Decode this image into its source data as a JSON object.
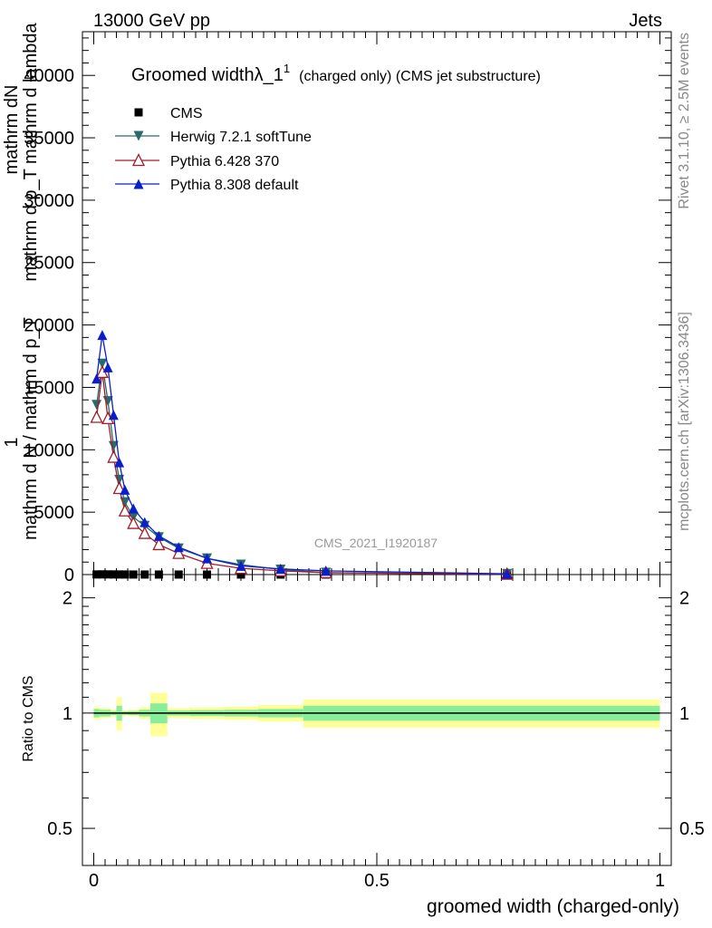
{
  "header": {
    "left": "13000 GeV pp",
    "right": "Jets"
  },
  "side_labels": {
    "rivet": "Rivet 3.1.10, ≥ 2.5M events",
    "mcplots": "mcplots.cern.ch [arXiv:1306.3436]"
  },
  "watermark": "CMS_2021_I1920187",
  "colors": {
    "cms": "#000000",
    "herwig": "#2a6a6a",
    "pythia6": "#a01c28",
    "pythia8": "#0a1ecc",
    "band_yellow": "#ffff99",
    "band_green": "#88ee99"
  },
  "chart_data": [
    {
      "type": "line",
      "title": "Groomed widthλ_1",
      "title_sup": "1",
      "title_suffix": "(charged only) (CMS jet substructure)",
      "ylabel_lines": [
        "mathrm dN",
        "mathrm d p_T mathrm d lambda"
      ],
      "ylabel_top": "1",
      "ylabel_bottom": "mathrm d N / mathrm d p_T",
      "xlim": [
        -0.02,
        1.02
      ],
      "ylim": [
        0,
        43500
      ],
      "yticks": [
        0,
        5000,
        10000,
        15000,
        20000,
        25000,
        30000,
        35000,
        40000
      ],
      "ytick_labels": [
        "0",
        "5000",
        "10000",
        "15000",
        "20000",
        "25000",
        "30000",
        "35000",
        "40000"
      ],
      "x": [
        0.005,
        0.015,
        0.025,
        0.035,
        0.045,
        0.055,
        0.07,
        0.09,
        0.115,
        0.15,
        0.2,
        0.26,
        0.33,
        0.41,
        0.73
      ],
      "legend_position": "top-left",
      "series": [
        {
          "name": "CMS",
          "marker": "square",
          "color_key": "cms",
          "values": [
            10,
            15,
            13,
            10,
            8,
            6,
            4,
            3,
            2,
            2,
            1,
            1,
            1,
            1,
            0
          ]
        },
        {
          "name": "Herwig 7.2.1 softTune",
          "marker": "triangle-down",
          "color_key": "herwig",
          "values": [
            13600,
            16900,
            13900,
            10300,
            7600,
            5800,
            4600,
            3900,
            3000,
            2100,
            1300,
            800,
            400,
            150,
            50
          ]
        },
        {
          "name": "Pythia 6.428 370",
          "marker": "triangle-up-open",
          "color_key": "pythia6",
          "values": [
            12600,
            16200,
            12500,
            9400,
            6900,
            5100,
            4100,
            3300,
            2400,
            1700,
            900,
            500,
            300,
            150,
            30
          ]
        },
        {
          "name": "Pythia 8.308 default",
          "marker": "triangle-up",
          "color_key": "pythia8",
          "values": [
            15700,
            19200,
            16600,
            12800,
            9000,
            6800,
            5300,
            4200,
            3100,
            2200,
            1300,
            700,
            450,
            300,
            60
          ]
        }
      ]
    },
    {
      "type": "line",
      "ylabel": "Ratio to CMS",
      "xlabel": "groomed width (charged-only)",
      "xlim": [
        -0.02,
        1.02
      ],
      "ylim": [
        0.4,
        2.3
      ],
      "log_y": true,
      "yticks": [
        0.5,
        1,
        2
      ],
      "ytick_labels": [
        "0.5",
        "1",
        "2"
      ],
      "xticks": [
        0,
        0.5,
        1
      ],
      "xtick_labels": [
        "0",
        "0.5",
        "1"
      ],
      "reference_line": 1,
      "bands": [
        {
          "x0": 0.0,
          "x1": 0.01,
          "yellow": 0.04,
          "green": 0.025
        },
        {
          "x0": 0.01,
          "x1": 0.03,
          "yellow": 0.03,
          "green": 0.02
        },
        {
          "x0": 0.03,
          "x1": 0.04,
          "yellow": 0.02,
          "green": 0.012
        },
        {
          "x0": 0.04,
          "x1": 0.05,
          "yellow": 0.1,
          "green": 0.045
        },
        {
          "x0": 0.05,
          "x1": 0.06,
          "yellow": 0.015,
          "green": 0.01
        },
        {
          "x0": 0.06,
          "x1": 0.08,
          "yellow": 0.02,
          "green": 0.012
        },
        {
          "x0": 0.08,
          "x1": 0.1,
          "yellow": 0.035,
          "green": 0.02
        },
        {
          "x0": 0.1,
          "x1": 0.13,
          "yellow": 0.13,
          "green": 0.06
        },
        {
          "x0": 0.13,
          "x1": 0.17,
          "yellow": 0.03,
          "green": 0.015
        },
        {
          "x0": 0.17,
          "x1": 0.23,
          "yellow": 0.035,
          "green": 0.018
        },
        {
          "x0": 0.23,
          "x1": 0.29,
          "yellow": 0.04,
          "green": 0.02
        },
        {
          "x0": 0.29,
          "x1": 0.37,
          "yellow": 0.05,
          "green": 0.025
        },
        {
          "x0": 0.37,
          "x1": 1.0,
          "yellow": 0.085,
          "green": 0.045
        }
      ]
    }
  ]
}
